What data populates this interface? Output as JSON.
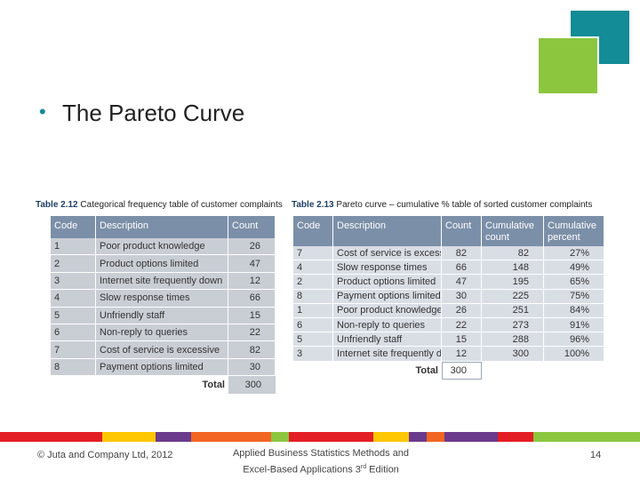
{
  "slide": {
    "bullet": "The Pareto Curve",
    "table1": {
      "caption_label": "Table 2.12",
      "caption_text": "Categorical frequency table of customer complaints",
      "headers": [
        "Code",
        "Description",
        "Count"
      ],
      "rows": [
        [
          1,
          "Poor product knowledge",
          26
        ],
        [
          2,
          "Product options limited",
          47
        ],
        [
          3,
          "Internet site frequently down",
          12
        ],
        [
          4,
          "Slow response times",
          66
        ],
        [
          5,
          "Unfriendly staff",
          15
        ],
        [
          6,
          "Non-reply to queries",
          22
        ],
        [
          7,
          "Cost of service is excessive",
          82
        ],
        [
          8,
          "Payment options limited",
          30
        ]
      ],
      "total_label": "Total",
      "total": 300
    },
    "table2": {
      "caption_label": "Table 2.13",
      "caption_text": "Pareto curve – cumulative % table of sorted customer complaints",
      "headers": [
        "Code",
        "Description",
        "Count",
        "Cumulative count",
        "Cumulative percent"
      ],
      "rows": [
        [
          7,
          "Cost of service is excessive",
          82,
          82,
          "27%"
        ],
        [
          4,
          "Slow response times",
          66,
          148,
          "49%"
        ],
        [
          2,
          "Product options limited",
          47,
          195,
          "65%"
        ],
        [
          8,
          "Payment options limited",
          30,
          225,
          "75%"
        ],
        [
          1,
          "Poor product knowledge",
          26,
          251,
          "84%"
        ],
        [
          6,
          "Non-reply to queries",
          22,
          273,
          "91%"
        ],
        [
          5,
          "Unfriendly staff",
          15,
          288,
          "96%"
        ],
        [
          3,
          "Internet site frequently down",
          12,
          300,
          "100%"
        ]
      ],
      "total_label": "Total",
      "total": 300
    },
    "footer": {
      "copyright": "© Juta and Company Ltd, 2012",
      "book_line1": "Applied Business Statistics Methods and",
      "book_line2": "Excel-Based Applications 3",
      "book_sup": "rd",
      "book_end": " Edition",
      "page": 14
    }
  }
}
